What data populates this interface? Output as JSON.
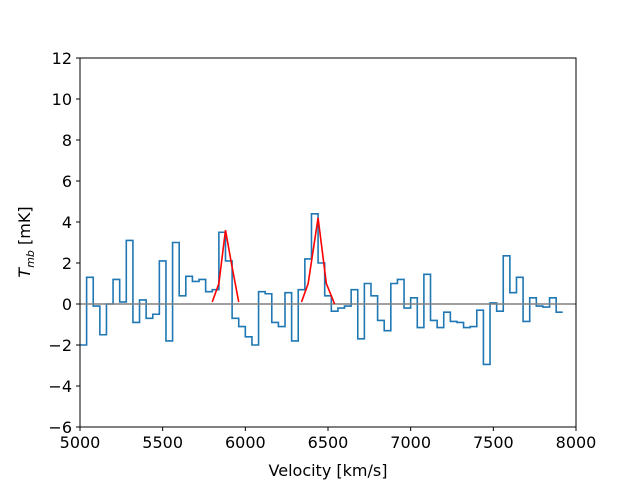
{
  "chart_data": {
    "type": "line",
    "title": "",
    "xlabel": "Velocity [km/s]",
    "ylabel_main": "T",
    "ylabel_sub": "mb",
    "ylabel_unit": " [mK]",
    "xlim": [
      5000,
      8000
    ],
    "ylim": [
      -6,
      12
    ],
    "xticks": [
      "5000",
      "5500",
      "6000",
      "6500",
      "7000",
      "7500",
      "8000"
    ],
    "yticks": [
      "−6",
      "−4",
      "−2",
      "0",
      "2",
      "4",
      "6",
      "8",
      "10",
      "12"
    ],
    "grid": false,
    "colors": {
      "spectrum": "#1f77b4",
      "fit": "#ff0000",
      "baseline": "#808080"
    },
    "spectrum": {
      "type": "step",
      "bin_width": 40,
      "x_start": 5000,
      "values": [
        -2.0,
        1.3,
        -0.1,
        -1.5,
        0.0,
        1.2,
        0.1,
        3.1,
        -0.9,
        0.2,
        -0.7,
        -0.5,
        2.1,
        -1.8,
        3.0,
        0.4,
        1.35,
        1.1,
        1.2,
        0.6,
        0.7,
        3.5,
        2.1,
        -0.7,
        -1.1,
        -1.6,
        -2.0,
        0.6,
        0.5,
        -0.9,
        -1.1,
        0.55,
        -1.8,
        0.7,
        2.2,
        4.4,
        2.0,
        0.4,
        -0.35,
        -0.2,
        -0.1,
        0.7,
        -1.7,
        1.0,
        0.4,
        -0.8,
        -1.3,
        1.0,
        1.2,
        -0.2,
        0.3,
        -1.15,
        1.45,
        -0.8,
        -1.15,
        -0.4,
        -0.85,
        -0.9,
        -1.15,
        -1.1,
        -0.3,
        -2.95,
        0.05,
        -0.35,
        2.35,
        0.55,
        1.3,
        -0.85,
        0.3,
        -0.1,
        -0.15,
        0.3,
        -0.4
      ]
    },
    "fit": {
      "name": "",
      "points": [
        [
          5800,
          0.1
        ],
        [
          5840,
          1.0
        ],
        [
          5880,
          3.6
        ],
        [
          5920,
          1.8
        ],
        [
          5960,
          0.1
        ],
        [
          6340,
          0.1
        ],
        [
          6380,
          1.0
        ],
        [
          6440,
          4.2
        ],
        [
          6490,
          1.0
        ],
        [
          6540,
          0.0
        ]
      ]
    },
    "baseline": 0
  }
}
